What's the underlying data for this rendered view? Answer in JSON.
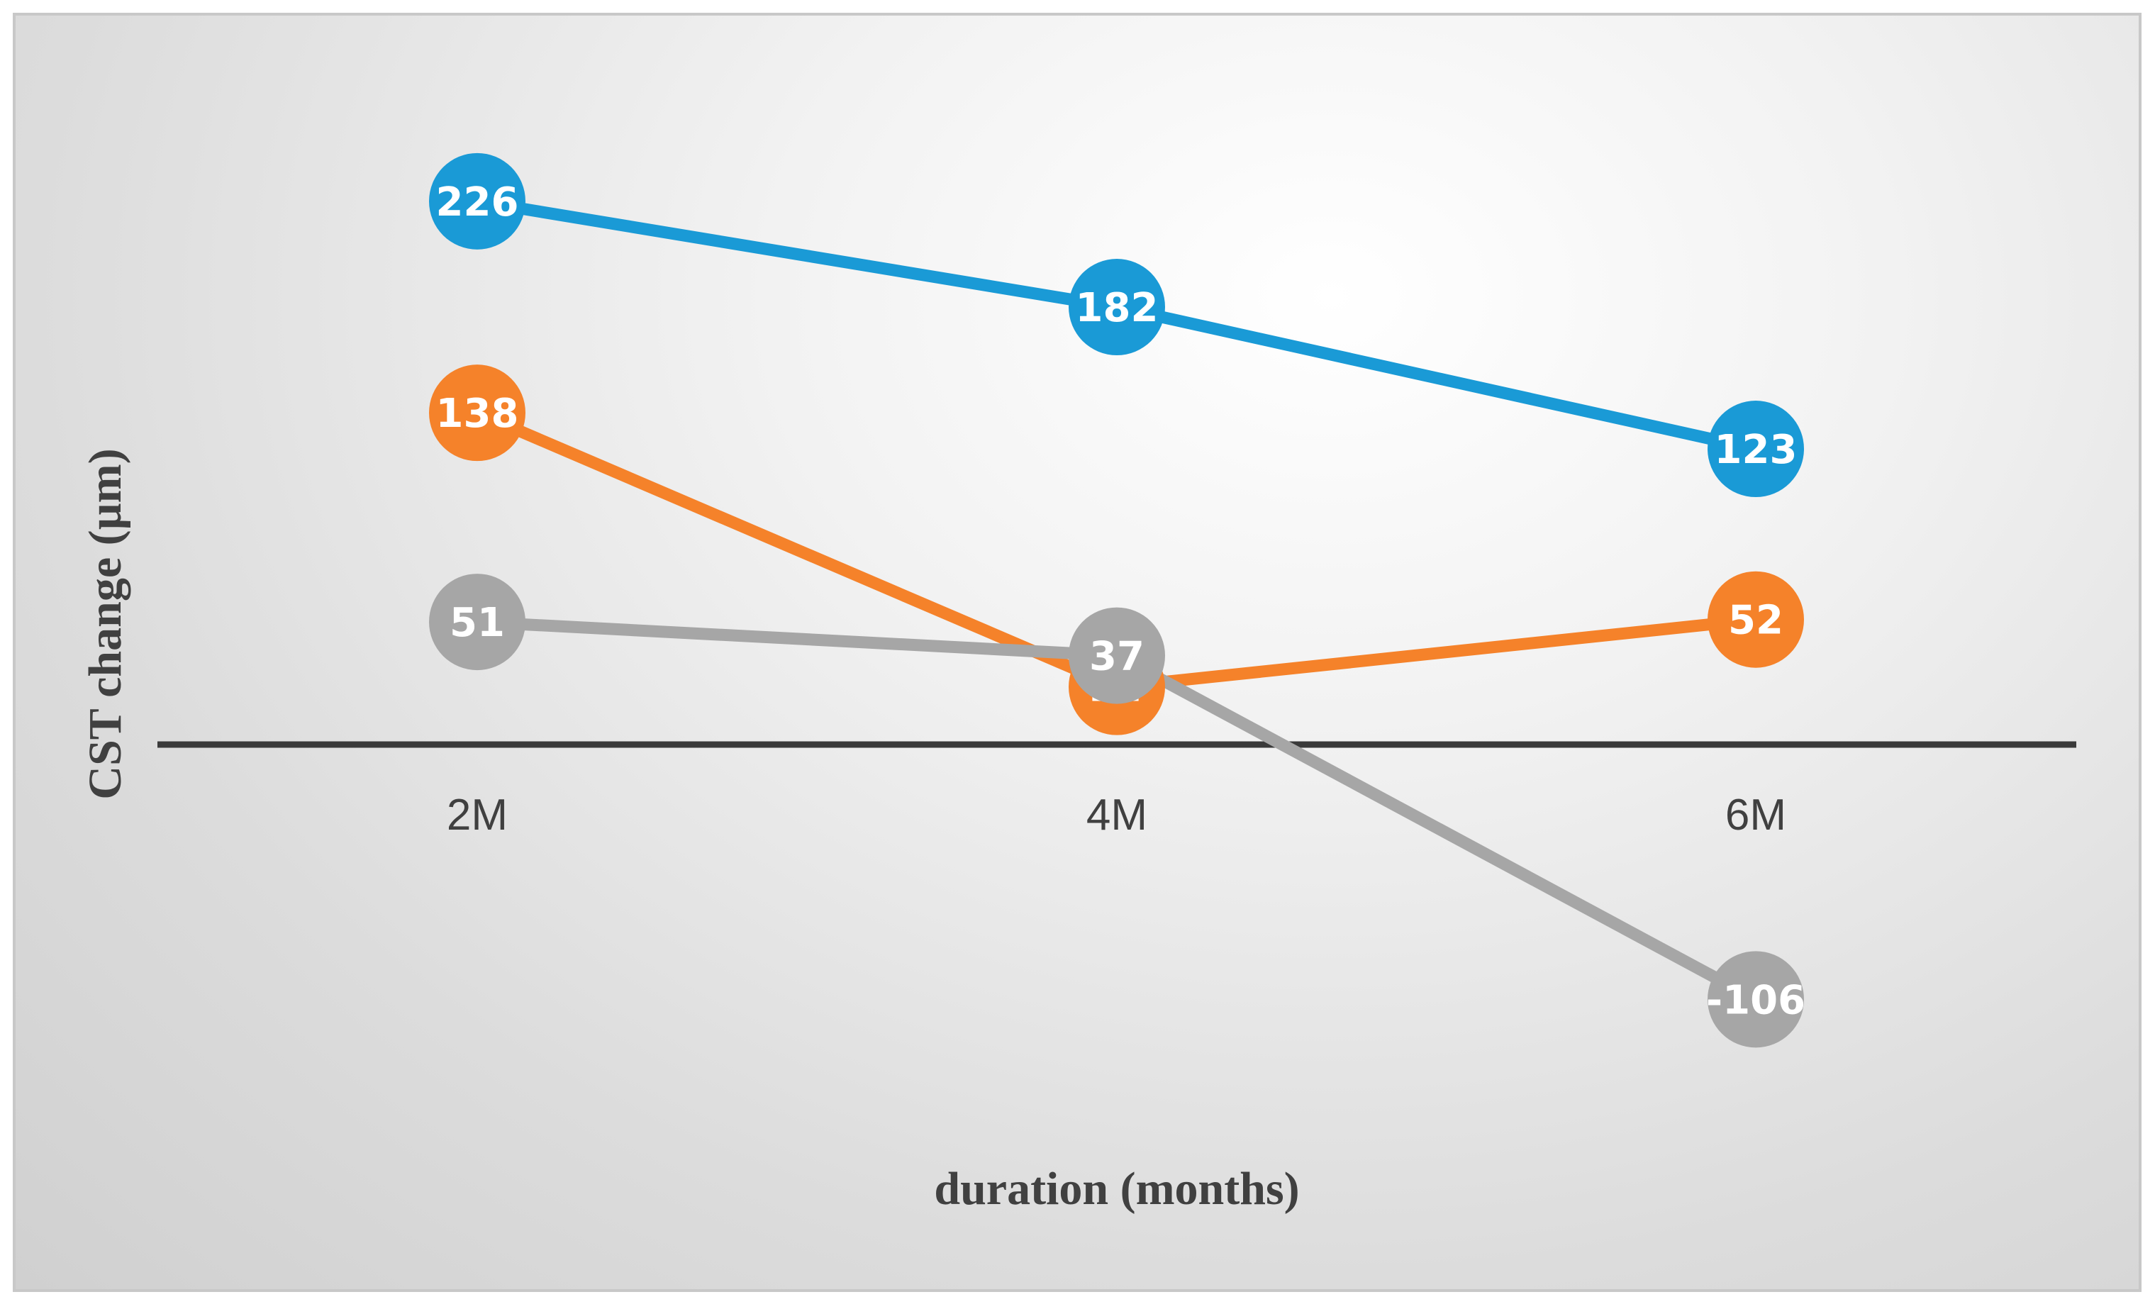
{
  "chart_data": {
    "type": "line",
    "xlabel": "duration (months)",
    "ylabel": "CST change (µm)",
    "categories": [
      "2M",
      "4M",
      "6M"
    ],
    "ylim": [
      -190,
      250
    ],
    "grid": false,
    "legend": "none",
    "series": [
      {
        "color": "#1a9ad6",
        "values": [
          226,
          182,
          123
        ]
      },
      {
        "color": "#f5822a",
        "values": [
          138,
          24,
          52
        ]
      },
      {
        "color": "#a6a6a6",
        "values": [
          51,
          37,
          -106
        ]
      }
    ],
    "zero_line_color": "#3a3a3a"
  }
}
